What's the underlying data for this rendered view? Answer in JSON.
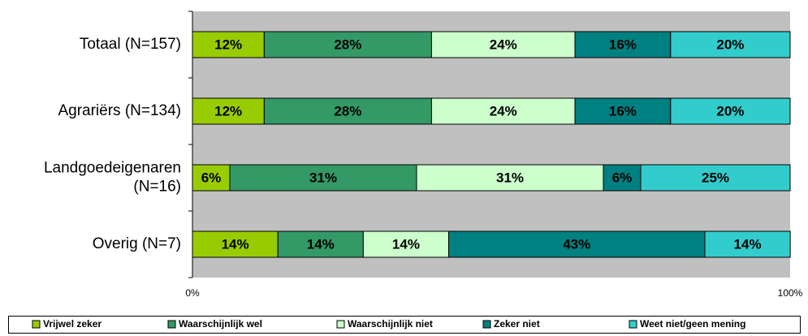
{
  "chart_data": {
    "type": "stacked_bar_horizontal",
    "categories": [
      "Totaal (N=157)",
      "Agrariërs (N=134)",
      "Landgoedeigenaren (N=16)",
      "Overig (N=7)"
    ],
    "series": [
      {
        "name": "Vrijwel zeker",
        "color": "#99cc00",
        "values": [
          12,
          12,
          6.25,
          14.29
        ],
        "value_labels": [
          "12%",
          "12%",
          "6%",
          "14%"
        ]
      },
      {
        "name": "Waarschijnlijk wel",
        "color": "#339966",
        "values": [
          28,
          28,
          31.25,
          14.29
        ],
        "value_labels": [
          "28%",
          "28%",
          "31%",
          "14%"
        ]
      },
      {
        "name": "Waarschijnlijk niet",
        "color": "#ccffcc",
        "values": [
          24,
          24,
          31.25,
          14.29
        ],
        "value_labels": [
          "24%",
          "24%",
          "31%",
          "14%"
        ]
      },
      {
        "name": "Zeker niet",
        "color": "#008080",
        "values": [
          16,
          16,
          6.25,
          42.86
        ],
        "value_labels": [
          "16%",
          "16%",
          "6%",
          "43%"
        ]
      },
      {
        "name": "Weet niet/geen mening",
        "color": "#33cccc",
        "values": [
          20,
          20,
          25,
          14.29
        ],
        "value_labels": [
          "20%",
          "20%",
          "25%",
          "14%"
        ]
      }
    ],
    "xlim": [
      0,
      100
    ],
    "xticks": [
      {
        "value": 0,
        "label": "0%"
      },
      {
        "value": 100,
        "label": "100%"
      }
    ],
    "legend": "bottom"
  }
}
